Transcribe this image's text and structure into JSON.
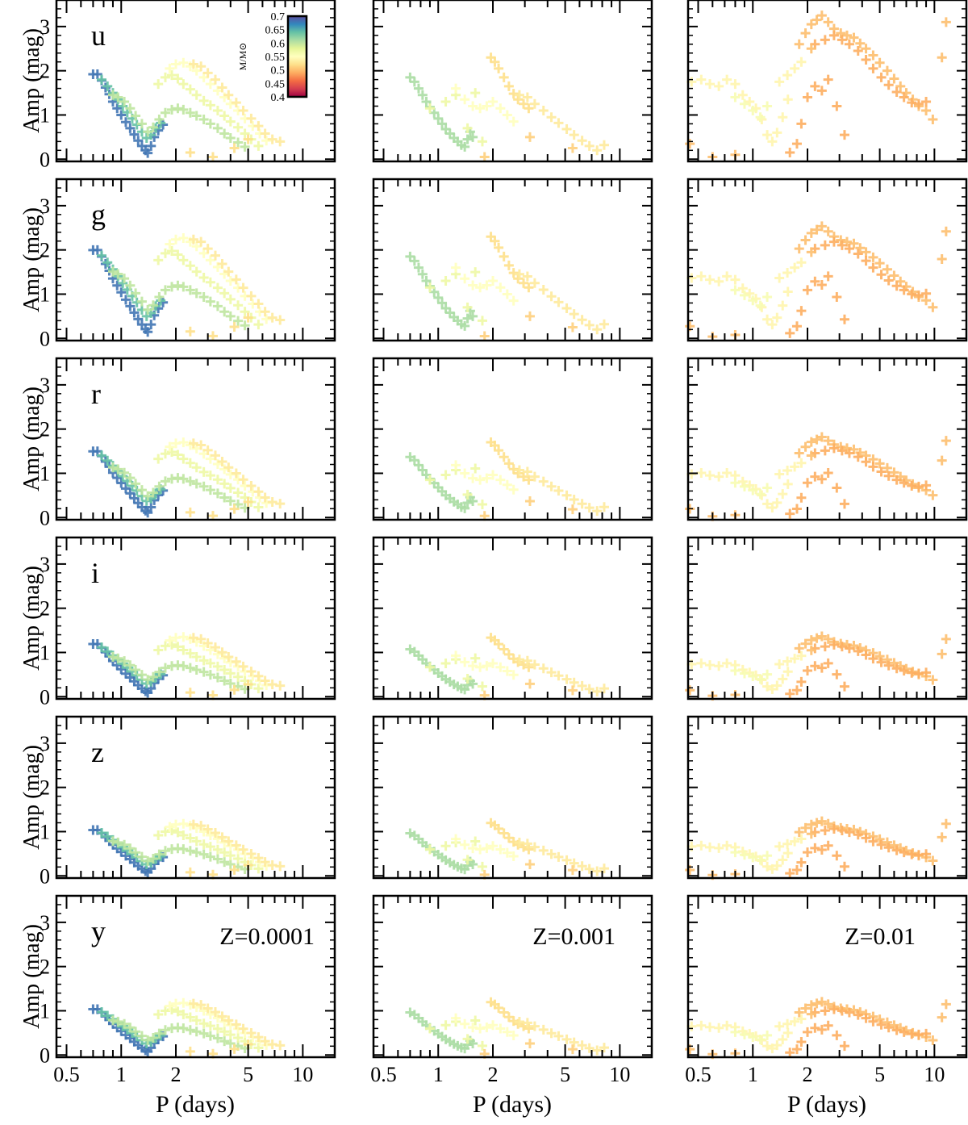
{
  "figure": {
    "xlabel": "P (days)",
    "ylabel": "Amp (mag)",
    "xticks": [
      "0.5",
      "1",
      "2",
      "5",
      "10"
    ],
    "yticks": [
      "0",
      "1",
      "2",
      "3"
    ],
    "bands": [
      "u",
      "g",
      "r",
      "i",
      "z",
      "y"
    ],
    "metallicities": [
      "Z=0.0001",
      "Z=0.001",
      "Z=0.01"
    ],
    "colorbar": {
      "label": "M/M⊙",
      "ticks": [
        "0.7",
        "0.65",
        "0.6",
        "0.55",
        "0.5",
        "0.45",
        "0.4"
      ],
      "range": [
        0.4,
        0.7
      ],
      "palette": [
        "#9e0142",
        "#d53e4f",
        "#f46d43",
        "#fdae61",
        "#fee08b",
        "#ffffbf",
        "#e6f598",
        "#abdda4",
        "#66c2a5",
        "#3288bd",
        "#5e4fa2"
      ]
    },
    "marker_color": "#000000"
  },
  "chart_data": {
    "type": "scatter",
    "marker": "+",
    "layout": "6 rows (bands) x 3 columns (metallicity)",
    "x_scale": "log",
    "xlim": [
      0.44,
      15
    ],
    "ylim": [
      -0.05,
      3.6
    ],
    "xlabel": "P (days)",
    "ylabel": "Amp (mag)",
    "color_by": "M/M⊙",
    "panels": [
      {
        "band": "u",
        "Z": "Z=0.0001",
        "scale": 1.0,
        "groups": [
          {
            "mass": 0.68,
            "x": [
              0.7,
              0.74,
              0.78,
              0.82,
              0.86,
              0.9,
              0.95,
              1.0,
              1.06,
              1.12,
              1.18,
              1.24,
              1.3,
              1.36,
              1.4,
              1.46,
              1.52,
              1.6,
              1.7
            ],
            "y": [
              1.92,
              1.92,
              1.78,
              1.62,
              1.47,
              1.3,
              1.15,
              1.0,
              0.84,
              0.7,
              0.56,
              0.42,
              0.3,
              0.2,
              0.14,
              0.3,
              0.5,
              0.65,
              0.78
            ]
          },
          {
            "mass": 0.64,
            "x": [
              0.78,
              0.84,
              0.9,
              0.96,
              1.02,
              1.08,
              1.15,
              1.22,
              1.3,
              1.38,
              1.46,
              1.55,
              1.65
            ],
            "y": [
              1.8,
              1.65,
              1.5,
              1.35,
              1.2,
              1.06,
              0.92,
              0.78,
              0.62,
              0.48,
              0.55,
              0.7,
              0.82
            ]
          },
          {
            "mass": 0.6,
            "x": [
              0.9,
              0.96,
              1.04,
              1.12,
              1.2,
              1.3,
              1.4,
              1.5,
              1.62,
              1.75,
              1.9,
              2.05,
              2.2,
              2.4,
              2.6,
              2.85,
              3.1,
              3.4,
              3.7,
              4.0,
              4.4,
              4.8
            ],
            "y": [
              1.45,
              1.4,
              1.3,
              1.15,
              0.98,
              0.8,
              0.62,
              0.72,
              0.9,
              1.05,
              1.12,
              1.15,
              1.12,
              1.05,
              0.98,
              0.9,
              0.8,
              0.7,
              0.58,
              0.48,
              0.38,
              0.28
            ]
          },
          {
            "mass": 0.57,
            "x": [
              1.6,
              1.75,
              1.9,
              2.05,
              2.2,
              2.4,
              2.6,
              2.85,
              3.1,
              3.4,
              3.7,
              4.0,
              4.4,
              4.8,
              5.2,
              5.7
            ],
            "y": [
              1.7,
              1.85,
              1.9,
              1.82,
              1.7,
              1.58,
              1.45,
              1.32,
              1.22,
              1.1,
              0.98,
              0.85,
              0.72,
              0.58,
              0.45,
              0.3
            ]
          },
          {
            "mass": 0.55,
            "x": [
              1.85,
              2.0,
              2.2,
              2.4,
              2.6,
              2.85,
              3.1,
              3.4,
              3.7,
              4.0,
              4.4,
              4.8,
              5.3,
              5.8,
              6.3
            ],
            "y": [
              2.05,
              2.15,
              2.18,
              2.1,
              2.0,
              1.85,
              1.7,
              1.55,
              1.4,
              1.25,
              1.1,
              0.92,
              0.75,
              0.58,
              0.42
            ]
          },
          {
            "mass": 0.53,
            "x": [
              2.5,
              2.75,
              3.0,
              3.3,
              3.6,
              3.9,
              4.3,
              4.7,
              5.2,
              5.7,
              6.2,
              6.8,
              7.5
            ],
            "y": [
              2.15,
              2.1,
              1.95,
              1.8,
              1.62,
              1.45,
              1.28,
              1.1,
              0.92,
              0.75,
              0.58,
              0.45,
              0.4
            ]
          },
          {
            "mass": 0.52,
            "x": [
              2.4,
              3.2,
              4.2,
              5.0
            ],
            "y": [
              0.15,
              0.05,
              0.25,
              0.45
            ]
          }
        ]
      },
      {
        "band": "u",
        "Z": "Z=0.001",
        "scale": 1.0,
        "groups": [
          {
            "mass": 0.61,
            "x": [
              0.7,
              0.74,
              0.78,
              0.82,
              0.86,
              0.9,
              0.95,
              1.0,
              1.05,
              1.1,
              1.16,
              1.22,
              1.28,
              1.34,
              1.4,
              1.45,
              1.5,
              1.55
            ],
            "y": [
              1.85,
              1.75,
              1.6,
              1.45,
              1.3,
              1.18,
              1.05,
              0.92,
              0.8,
              0.68,
              0.58,
              0.48,
              0.4,
              0.32,
              0.28,
              0.45,
              0.62,
              0.5
            ]
          },
          {
            "mass": 0.57,
            "x": [
              0.9,
              1.1,
              1.25,
              1.45,
              1.6,
              1.75
            ],
            "y": [
              1.15,
              1.3,
              1.45,
              0.7,
              1.5,
              0.4
            ]
          },
          {
            "mass": 0.55,
            "x": [
              1.25,
              1.4,
              1.55,
              1.7,
              1.85,
              2.0,
              2.2,
              2.4,
              2.6
            ],
            "y": [
              1.6,
              1.35,
              1.2,
              1.15,
              1.2,
              1.3,
              1.15,
              1.0,
              0.85
            ]
          },
          {
            "mass": 0.52,
            "x": [
              1.95,
              2.05,
              2.15,
              2.3,
              2.45,
              2.6,
              2.75,
              2.95,
              3.15
            ],
            "y": [
              2.3,
              2.2,
              2.05,
              1.85,
              1.65,
              1.48,
              1.35,
              1.25,
              1.15
            ]
          },
          {
            "mass": 0.53,
            "x": [
              2.8,
              3.1,
              3.4,
              3.8,
              4.2,
              4.6,
              5.1,
              5.6,
              6.2,
              6.8,
              7.5,
              8.2
            ],
            "y": [
              1.45,
              1.4,
              1.25,
              1.1,
              0.95,
              0.82,
              0.68,
              0.55,
              0.42,
              0.3,
              0.2,
              0.32
            ]
          },
          {
            "mass": 0.51,
            "x": [
              1.8,
              3.2,
              5.5
            ],
            "y": [
              0.05,
              0.5,
              0.25
            ]
          }
        ]
      },
      {
        "band": "u",
        "Z": "Z=0.01",
        "scale": 1.0,
        "groups": [
          {
            "mass": 0.54,
            "x": [
              0.46,
              0.52,
              0.58,
              0.65,
              0.72,
              0.8,
              0.88,
              0.96,
              1.04,
              1.12,
              1.2,
              1.28,
              1.36,
              1.46,
              1.56
            ],
            "y": [
              1.75,
              1.8,
              1.7,
              1.65,
              1.8,
              1.7,
              1.45,
              1.3,
              1.15,
              0.9,
              0.55,
              0.4,
              0.6,
              0.95,
              1.35
            ]
          },
          {
            "mass": 0.56,
            "x": [
              0.8,
              0.9,
              1.0,
              1.1,
              1.2
            ],
            "y": [
              1.4,
              1.25,
              1.1,
              0.95,
              1.2
            ]
          },
          {
            "mass": 0.54,
            "x": [
              1.4,
              1.55,
              1.7,
              1.85
            ],
            "y": [
              1.75,
              1.9,
              2.05,
              2.2
            ]
          },
          {
            "mass": 0.5,
            "x": [
              1.8,
              1.95,
              2.1,
              2.25,
              2.4,
              2.6,
              2.8,
              3.05,
              3.3,
              3.6,
              3.9,
              4.2,
              4.6,
              5.0,
              5.5,
              6.0,
              6.5,
              7.0,
              7.6,
              8.2,
              9.0,
              9.8
            ],
            "y": [
              2.6,
              2.85,
              3.05,
              3.15,
              3.25,
              3.1,
              2.95,
              2.85,
              2.8,
              2.75,
              2.62,
              2.5,
              2.35,
              2.18,
              2.0,
              1.82,
              1.65,
              1.5,
              1.35,
              1.2,
              1.1,
              0.9
            ]
          },
          {
            "mass": 0.49,
            "x": [
              2.2,
              2.5,
              2.8,
              3.1,
              3.4,
              3.8,
              4.2,
              4.6,
              5.1,
              5.6,
              6.2,
              6.8,
              7.5,
              8.2,
              9.0
            ],
            "y": [
              2.6,
              2.7,
              2.8,
              2.7,
              2.6,
              2.45,
              2.25,
              2.05,
              1.85,
              1.68,
              1.52,
              1.4,
              1.28,
              1.25,
              1.3
            ]
          },
          {
            "mass": 0.49,
            "x": [
              1.6,
              1.75,
              1.85,
              2.0,
              2.2,
              2.4,
              2.6,
              2.9,
              3.2
            ],
            "y": [
              0.15,
              0.35,
              0.8,
              1.4,
              1.65,
              1.55,
              1.8,
              1.2,
              0.55
            ]
          },
          {
            "mass": 0.5,
            "x": [
              0.45,
              0.6,
              0.8,
              2.1,
              11.0,
              11.6
            ],
            "y": [
              0.35,
              0.05,
              0.1,
              2.5,
              2.3,
              3.1
            ]
          }
        ]
      },
      {
        "band": "g",
        "Z": "Z=0.0001",
        "scale": 1.04
      },
      {
        "band": "g",
        "Z": "Z=0.001",
        "scale": 1.0
      },
      {
        "band": "g",
        "Z": "Z=0.01",
        "scale": 0.78
      },
      {
        "band": "r",
        "Z": "Z=0.0001",
        "scale": 0.78
      },
      {
        "band": "r",
        "Z": "Z=0.001",
        "scale": 0.74
      },
      {
        "band": "r",
        "Z": "Z=0.01",
        "scale": 0.56
      },
      {
        "band": "i",
        "Z": "Z=0.0001",
        "scale": 0.62
      },
      {
        "band": "i",
        "Z": "Z=0.001",
        "scale": 0.58
      },
      {
        "band": "i",
        "Z": "Z=0.01",
        "scale": 0.42
      },
      {
        "band": "z",
        "Z": "Z=0.0001",
        "scale": 0.54
      },
      {
        "band": "z",
        "Z": "Z=0.001",
        "scale": 0.52
      },
      {
        "band": "z",
        "Z": "Z=0.01",
        "scale": 0.38
      },
      {
        "band": "y",
        "Z": "Z=0.0001",
        "scale": 0.54
      },
      {
        "band": "y",
        "Z": "Z=0.001",
        "scale": 0.52
      },
      {
        "band": "y",
        "Z": "Z=0.01",
        "scale": 0.37
      }
    ]
  }
}
